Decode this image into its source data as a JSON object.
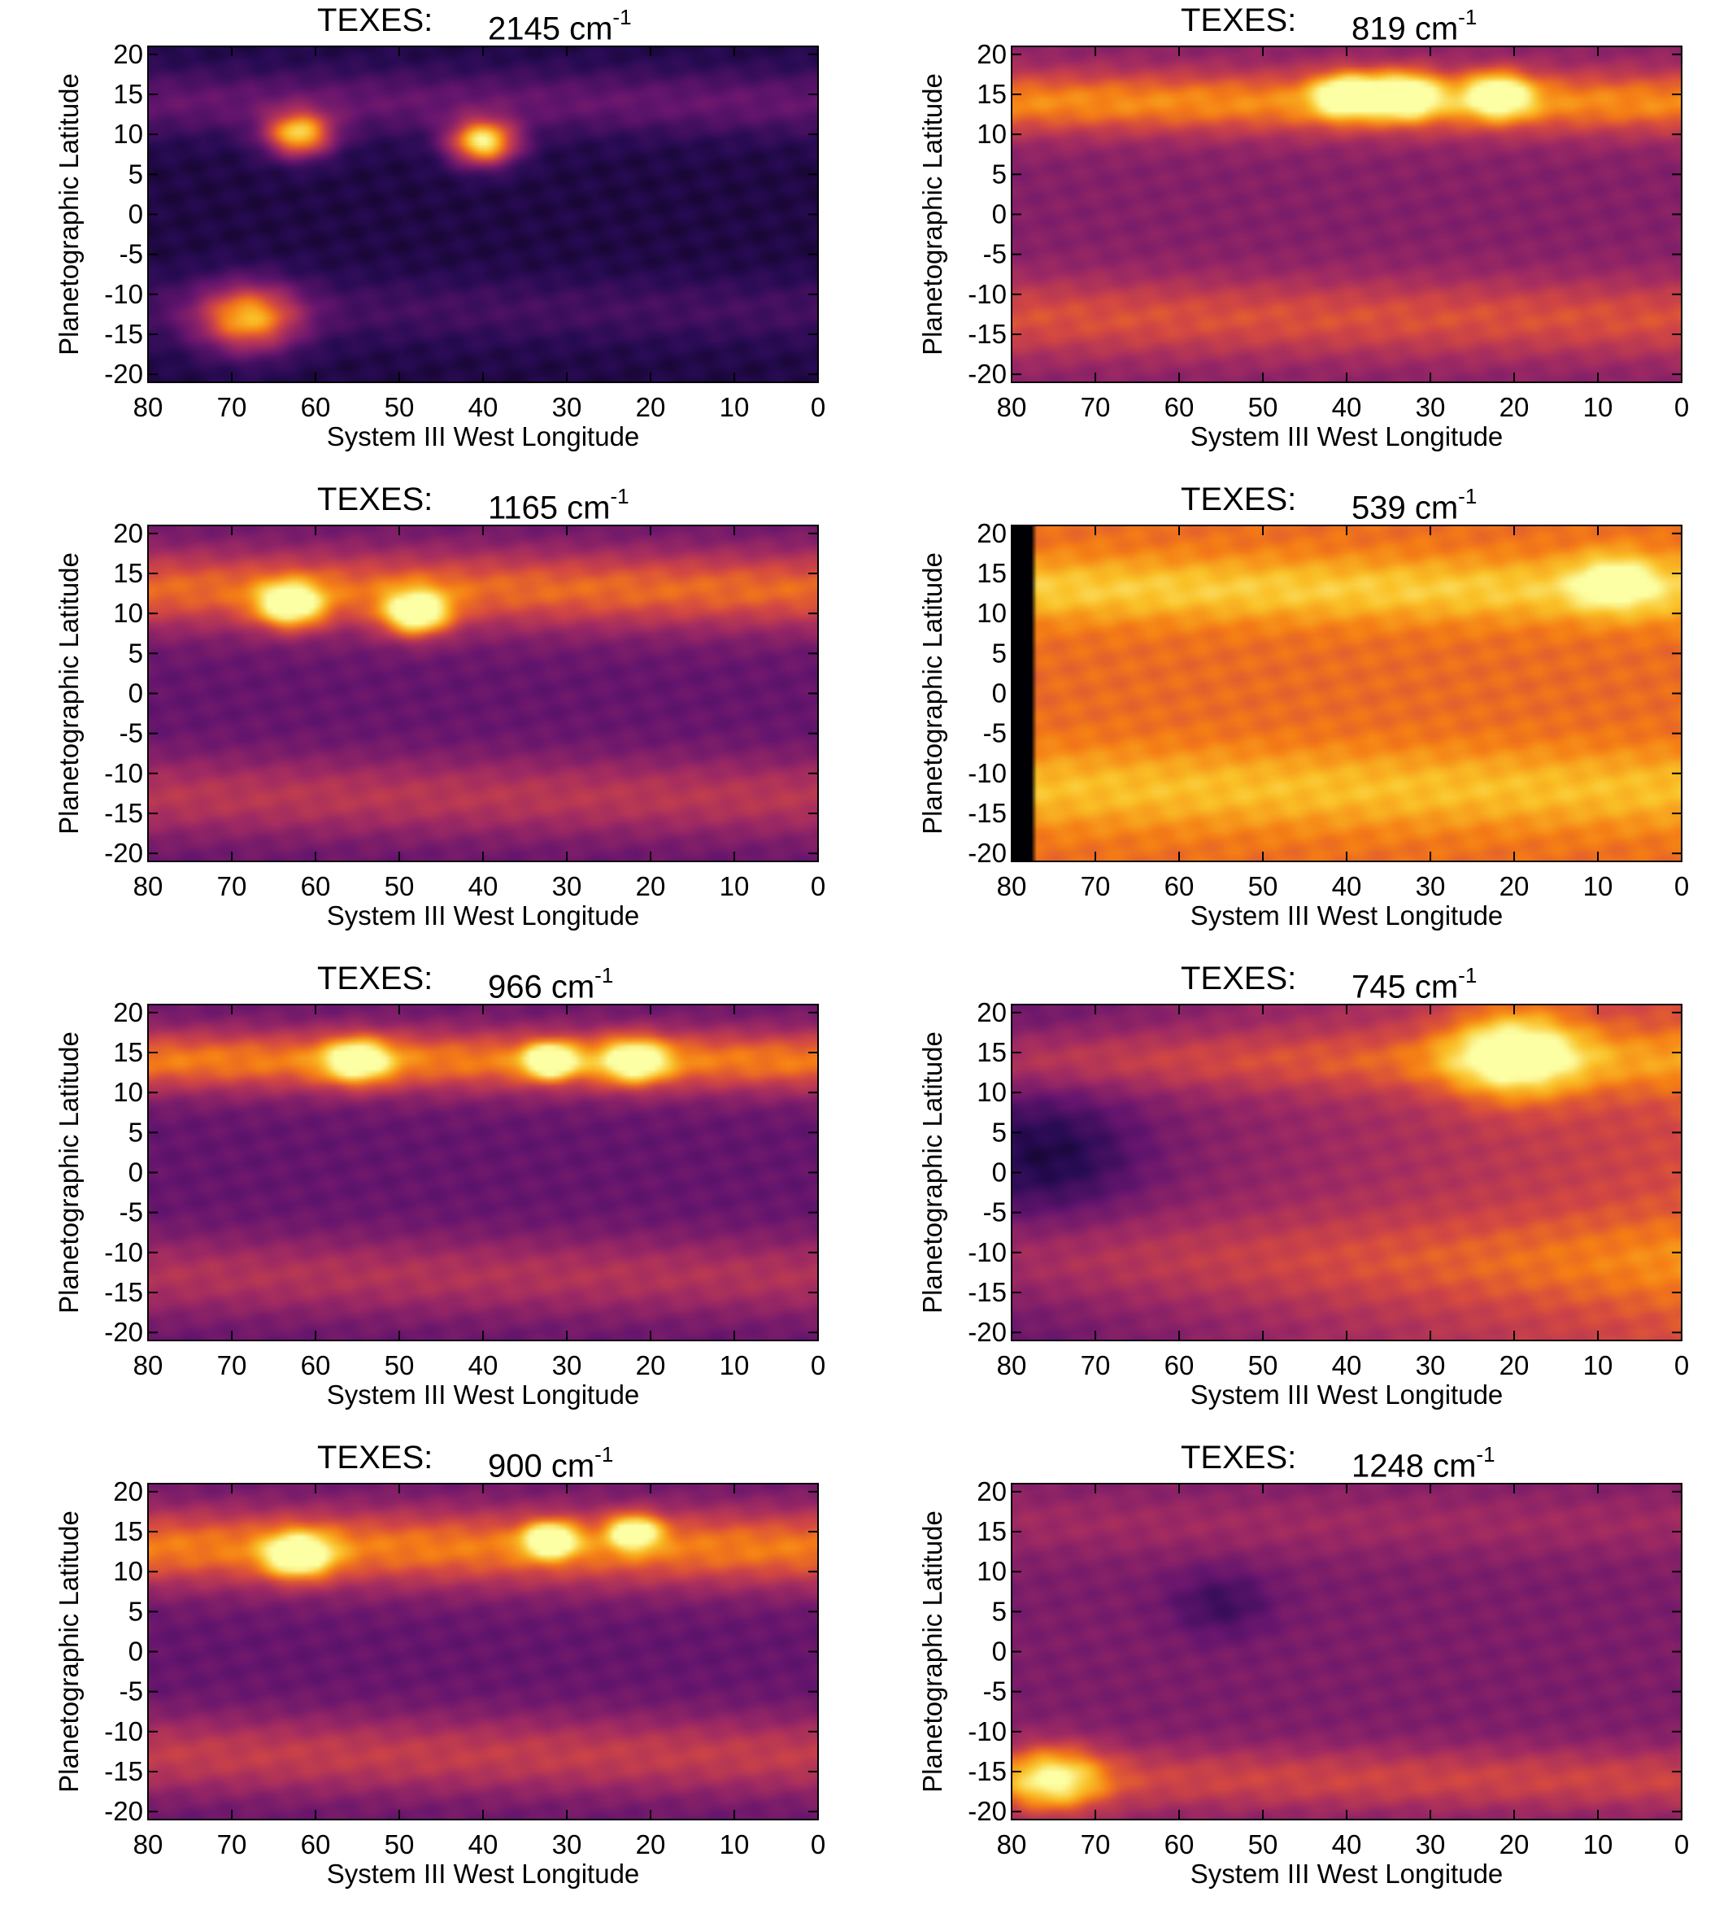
{
  "chart_data": [
    {
      "type": "heatmap",
      "title_prefix": "TEXES:",
      "wavenumber": "2145 cm",
      "exponent": "-1",
      "xlabel": "System III West Longitude",
      "ylabel": "Planetographic Latitude",
      "xlim": [
        80,
        0
      ],
      "ylim": [
        -21,
        21
      ],
      "xticks": [
        "80",
        "70",
        "60",
        "50",
        "40",
        "30",
        "20",
        "10",
        "0"
      ],
      "yticks": [
        "20",
        "15",
        "10",
        "5",
        "0",
        "-5",
        "-10",
        "-15",
        "-20"
      ],
      "colormap": "inferno-like",
      "base_level": 0.12,
      "bands": [
        {
          "lat": 14,
          "width": 4,
          "level": 0.3
        },
        {
          "lat": -12,
          "width": 4,
          "level": 0.22
        }
      ],
      "hotspots": [
        {
          "lon": 62,
          "lat": 10,
          "r": 4,
          "level": 0.85
        },
        {
          "lon": 40,
          "lat": 9,
          "r": 4,
          "level": 0.95
        },
        {
          "lon": 68,
          "lat": -13,
          "r": 6,
          "level": 0.75
        }
      ]
    },
    {
      "type": "heatmap",
      "title_prefix": "TEXES:",
      "wavenumber": "819 cm",
      "exponent": "-1",
      "xlabel": "System III West Longitude",
      "ylabel": "Planetographic Latitude",
      "xlim": [
        80,
        0
      ],
      "ylim": [
        -21,
        21
      ],
      "xticks": [
        "80",
        "70",
        "60",
        "50",
        "40",
        "30",
        "20",
        "10",
        "0"
      ],
      "yticks": [
        "20",
        "15",
        "10",
        "5",
        "0",
        "-5",
        "-10",
        "-15",
        "-20"
      ],
      "colormap": "inferno-like",
      "base_level": 0.38,
      "bands": [
        {
          "lat": 14,
          "width": 4,
          "level": 0.75
        },
        {
          "lat": -13,
          "width": 5,
          "level": 0.62
        }
      ],
      "hotspots": [
        {
          "lon": 33,
          "lat": 15,
          "r": 4,
          "level": 0.95
        },
        {
          "lon": 22,
          "lat": 15,
          "r": 4,
          "level": 0.9
        },
        {
          "lon": 40,
          "lat": 15,
          "r": 4,
          "level": 0.9
        }
      ]
    },
    {
      "type": "heatmap",
      "title_prefix": "TEXES:",
      "wavenumber": "1165 cm",
      "exponent": "-1",
      "xlabel": "System III West Longitude",
      "ylabel": "Planetographic Latitude",
      "xlim": [
        80,
        0
      ],
      "ylim": [
        -21,
        21
      ],
      "xticks": [
        "80",
        "70",
        "60",
        "50",
        "40",
        "30",
        "20",
        "10",
        "0"
      ],
      "yticks": [
        "20",
        "15",
        "10",
        "5",
        "0",
        "-5",
        "-10",
        "-15",
        "-20"
      ],
      "colormap": "inferno-like",
      "base_level": 0.3,
      "bands": [
        {
          "lat": 13,
          "width": 5,
          "level": 0.68
        },
        {
          "lat": -13,
          "width": 5,
          "level": 0.52
        }
      ],
      "hotspots": [
        {
          "lon": 63,
          "lat": 11,
          "r": 4,
          "level": 0.9
        },
        {
          "lon": 48,
          "lat": 10,
          "r": 4,
          "level": 0.95
        }
      ]
    },
    {
      "type": "heatmap",
      "title_prefix": "TEXES:",
      "wavenumber": "539 cm",
      "exponent": "-1",
      "xlabel": "System III West Longitude",
      "ylabel": "Planetographic Latitude",
      "xlim": [
        80,
        0
      ],
      "ylim": [
        -21,
        21
      ],
      "xticks": [
        "80",
        "70",
        "60",
        "50",
        "40",
        "30",
        "20",
        "10",
        "0"
      ],
      "yticks": [
        "20",
        "15",
        "10",
        "5",
        "0",
        "-5",
        "-10",
        "-15",
        "-20"
      ],
      "colormap": "inferno-like",
      "base_level": 0.68,
      "bands": [
        {
          "lat": 13,
          "width": 4,
          "level": 0.88
        },
        {
          "lat": -12,
          "width": 5,
          "level": 0.85
        }
      ],
      "hotspots": [
        {
          "lon": 8,
          "lat": 14,
          "r": 5,
          "level": 0.95
        }
      ],
      "masked_lon_range": [
        80,
        77.2
      ]
    },
    {
      "type": "heatmap",
      "title_prefix": "TEXES:",
      "wavenumber": "966 cm",
      "exponent": "-1",
      "xlabel": "System III West Longitude",
      "ylabel": "Planetographic Latitude",
      "xlim": [
        80,
        0
      ],
      "ylim": [
        -21,
        21
      ],
      "xticks": [
        "80",
        "70",
        "60",
        "50",
        "40",
        "30",
        "20",
        "10",
        "0"
      ],
      "yticks": [
        "20",
        "15",
        "10",
        "5",
        "0",
        "-5",
        "-10",
        "-15",
        "-20"
      ],
      "colormap": "inferno-like",
      "base_level": 0.3,
      "bands": [
        {
          "lat": 14,
          "width": 4,
          "level": 0.72
        },
        {
          "lat": -13,
          "width": 5,
          "level": 0.5
        }
      ],
      "hotspots": [
        {
          "lon": 32,
          "lat": 14,
          "r": 3,
          "level": 0.95
        },
        {
          "lon": 55,
          "lat": 14,
          "r": 4,
          "level": 0.8
        },
        {
          "lon": 22,
          "lat": 14,
          "r": 4,
          "level": 0.8
        }
      ]
    },
    {
      "type": "heatmap",
      "title_prefix": "TEXES:",
      "wavenumber": "745 cm",
      "exponent": "-1",
      "xlabel": "System III West Longitude",
      "ylabel": "Planetographic Latitude",
      "xlim": [
        80,
        0
      ],
      "ylim": [
        -21,
        21
      ],
      "xticks": [
        "80",
        "70",
        "60",
        "50",
        "40",
        "30",
        "20",
        "10",
        "0"
      ],
      "yticks": [
        "20",
        "15",
        "10",
        "5",
        "0",
        "-5",
        "-10",
        "-15",
        "-20"
      ],
      "colormap": "inferno-like",
      "base_level": 0.42,
      "bands": [
        {
          "lat": 14,
          "width": 4,
          "level": 0.62
        },
        {
          "lat": -11,
          "width": 6,
          "level": 0.58
        }
      ],
      "hotspots": [
        {
          "lon": 20,
          "lat": 15,
          "r": 8,
          "level": 0.9
        },
        {
          "lon": 75,
          "lat": 2,
          "r": 10,
          "level": 0.22
        }
      ],
      "gradient_west_to_east": [
        0.3,
        0.6
      ]
    },
    {
      "type": "heatmap",
      "title_prefix": "TEXES:",
      "wavenumber": "900 cm",
      "exponent": "-1",
      "xlabel": "System III West Longitude",
      "ylabel": "Planetographic Latitude",
      "xlim": [
        80,
        0
      ],
      "ylim": [
        -21,
        21
      ],
      "xticks": [
        "80",
        "70",
        "60",
        "50",
        "40",
        "30",
        "20",
        "10",
        "0"
      ],
      "yticks": [
        "20",
        "15",
        "10",
        "5",
        "0",
        "-5",
        "-10",
        "-15",
        "-20"
      ],
      "colormap": "inferno-like",
      "base_level": 0.3,
      "bands": [
        {
          "lat": 13,
          "width": 5,
          "level": 0.72
        },
        {
          "lat": -13,
          "width": 5,
          "level": 0.55
        }
      ],
      "hotspots": [
        {
          "lon": 32,
          "lat": 14,
          "r": 3,
          "level": 0.95
        },
        {
          "lon": 62,
          "lat": 12,
          "r": 4,
          "level": 0.88
        },
        {
          "lon": 22,
          "lat": 15,
          "r": 3,
          "level": 0.88
        }
      ]
    },
    {
      "type": "heatmap",
      "title_prefix": "TEXES:",
      "wavenumber": "1248 cm",
      "exponent": "-1",
      "xlabel": "System III West Longitude",
      "ylabel": "Planetographic Latitude",
      "xlim": [
        80,
        0
      ],
      "ylim": [
        -21,
        21
      ],
      "xticks": [
        "80",
        "70",
        "60",
        "50",
        "40",
        "30",
        "20",
        "10",
        "0"
      ],
      "yticks": [
        "20",
        "15",
        "10",
        "5",
        "0",
        "-5",
        "-10",
        "-15",
        "-20"
      ],
      "colormap": "inferno-like",
      "base_level": 0.36,
      "bands": [
        {
          "lat": -16,
          "width": 4,
          "level": 0.58
        },
        {
          "lat": 16,
          "width": 4,
          "level": 0.45
        }
      ],
      "hotspots": [
        {
          "lon": 75,
          "lat": -16,
          "r": 6,
          "level": 0.82
        },
        {
          "lon": 55,
          "lat": 6,
          "r": 6,
          "level": 0.2
        }
      ]
    }
  ]
}
